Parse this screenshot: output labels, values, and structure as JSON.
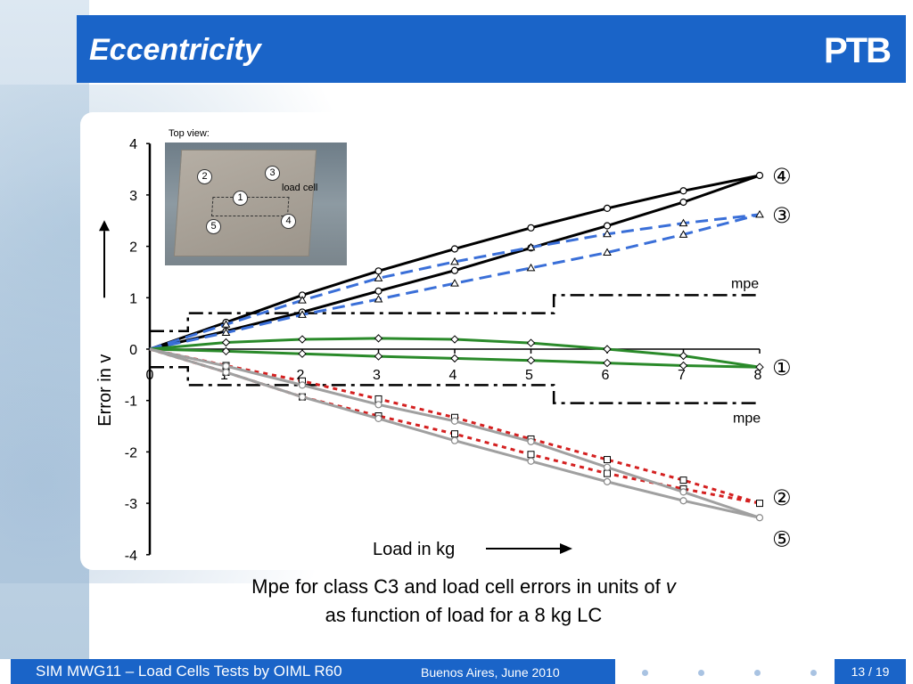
{
  "header": {
    "title": "Eccentricity",
    "logo": "PTB"
  },
  "photo": {
    "top_view_label": "Top view:",
    "load_cell_label": "load cell",
    "positions": [
      "1",
      "2",
      "3",
      "4",
      "5"
    ]
  },
  "caption": {
    "line1": "Mpe for class C3 and load cell errors in units of ",
    "line1_var": "v",
    "line2": "as function of load for a 8 kg LC"
  },
  "footer": {
    "main": "SIM MWG11 – Load Cells Tests by OIML R60",
    "sub": "Buenos Aires, June 2010",
    "page": "13 / 19"
  },
  "chart_data": {
    "type": "line",
    "xlabel": "Load  in kg",
    "ylabel": "Error  in  v",
    "xlim": [
      0,
      8
    ],
    "ylim": [
      -4,
      4
    ],
    "x_ticks": [
      "0",
      "1",
      "2",
      "3",
      "4",
      "5",
      "6",
      "7",
      "8"
    ],
    "y_ticks": [
      "4",
      "3",
      "2",
      "1",
      "0",
      "-1",
      "-2",
      "-3",
      "-4"
    ],
    "mpe": {
      "label_upper": "mpe",
      "label_lower": "mpe",
      "color": "#000000",
      "steps": [
        {
          "x0": 0,
          "x1": 0.5,
          "value": 0.35
        },
        {
          "x0": 0.5,
          "x1": 5.3,
          "value": 0.7
        },
        {
          "x0": 5.3,
          "x1": 8,
          "value": 1.05
        }
      ]
    },
    "series": [
      {
        "label": "④",
        "color": "#000000",
        "dash": "",
        "marker": "circle",
        "x": [
          0,
          1,
          2,
          3,
          4,
          5,
          6,
          7,
          8
        ],
        "up": [
          0,
          0.52,
          1.05,
          1.52,
          1.95,
          2.36,
          2.74,
          3.08,
          3.38
        ],
        "down": [
          0,
          0.35,
          0.72,
          1.13,
          1.53,
          1.97,
          2.4,
          2.86,
          3.38
        ]
      },
      {
        "label": "③",
        "color": "#3a6fd8",
        "dash": "14,7",
        "marker": "triangle",
        "x": [
          0,
          1,
          2,
          3,
          4,
          5,
          6,
          7,
          8
        ],
        "up": [
          0,
          0.48,
          0.95,
          1.38,
          1.7,
          1.98,
          2.24,
          2.45,
          2.62
        ],
        "down": [
          0,
          0.32,
          0.67,
          0.97,
          1.28,
          1.58,
          1.88,
          2.23,
          2.62
        ]
      },
      {
        "label": "①",
        "color": "#2a8a2a",
        "dash": "",
        "marker": "diamond",
        "x": [
          0,
          1,
          2,
          3,
          4,
          5,
          6,
          7,
          8
        ],
        "up": [
          0,
          0.13,
          0.19,
          0.21,
          0.19,
          0.12,
          0.0,
          -0.13,
          -0.35
        ],
        "down": [
          0,
          -0.04,
          -0.09,
          -0.14,
          -0.18,
          -0.22,
          -0.27,
          -0.32,
          -0.35
        ]
      },
      {
        "label": "②",
        "color": "#d42020",
        "dash": "5,5",
        "marker": "square",
        "x": [
          0,
          1,
          2,
          3,
          4,
          5,
          6,
          7,
          8
        ],
        "up": [
          0,
          -0.45,
          -0.93,
          -1.3,
          -1.65,
          -2.05,
          -2.42,
          -2.72,
          -3.0
        ],
        "down": [
          0,
          -0.32,
          -0.62,
          -0.97,
          -1.33,
          -1.75,
          -2.15,
          -2.55,
          -3.0
        ]
      },
      {
        "label": "⑤",
        "color": "#a0a0a0",
        "dash": "",
        "marker": "circle",
        "x": [
          0,
          1,
          2,
          3,
          4,
          5,
          6,
          7,
          8
        ],
        "up": [
          0,
          -0.45,
          -0.93,
          -1.35,
          -1.78,
          -2.18,
          -2.58,
          -2.95,
          -3.28
        ],
        "down": [
          0,
          -0.33,
          -0.7,
          -1.08,
          -1.4,
          -1.8,
          -2.3,
          -2.78,
          -3.28
        ]
      }
    ]
  }
}
